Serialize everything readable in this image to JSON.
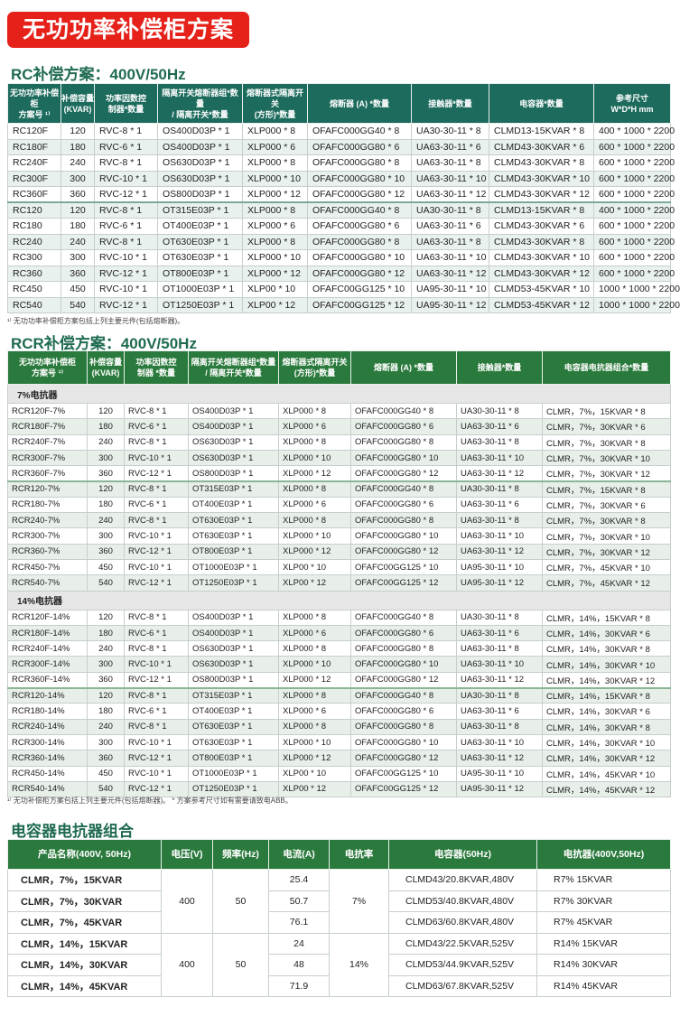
{
  "title": "无功功率补偿柜方案",
  "rc": {
    "heading": "RC补偿方案：400V/50Hz",
    "headers": [
      "无功功率补偿柜\n方案号 ¹⁾",
      "补偿容量\n(KVAR)",
      "功率因数控\n制器*数量",
      "隔离开关熔断器组*数量\n/ 隔离开关*数量",
      "熔断器式隔离开关\n(方形)*数量",
      "熔断器 (A) *数量",
      "接触器*数量",
      "电容器*数量",
      "参考尺寸\nW*D*H mm"
    ],
    "rows": [
      [
        "RC120F",
        "120",
        "RVC-8 * 1",
        "OS400D03P * 1",
        "XLP000 * 8",
        "OFAFC000GG40 * 8",
        "UA30-30-11 * 8",
        "CLMD13-15KVAR * 8",
        "400 * 1000 * 2200"
      ],
      [
        "RC180F",
        "180",
        "RVC-6 * 1",
        "OS400D03P * 1",
        "XLP000 * 6",
        "OFAFC000GG80 * 6",
        "UA63-30-11 * 6",
        "CLMD43-30KVAR * 6",
        "600 * 1000 * 2200"
      ],
      [
        "RC240F",
        "240",
        "RVC-8 * 1",
        "OS630D03P * 1",
        "XLP000 * 8",
        "OFAFC000GG80 * 8",
        "UA63-30-11 * 8",
        "CLMD43-30KVAR * 8",
        "600 * 1000 * 2200"
      ],
      [
        "RC300F",
        "300",
        "RVC-10 * 1",
        "OS630D03P * 1",
        "XLP000 * 10",
        "OFAFC000GG80 * 10",
        "UA63-30-11 * 10",
        "CLMD43-30KVAR * 10",
        "600 * 1000 * 2200"
      ],
      [
        "RC360F",
        "360",
        "RVC-12 * 1",
        "OS800D03P * 1",
        "XLP000 * 12",
        "OFAFC000GG80 * 12",
        "UA63-30-11 * 12",
        "CLMD43-30KVAR * 12",
        "600 * 1000 * 2200"
      ],
      [
        "RC120",
        "120",
        "RVC-8 * 1",
        "OT315E03P * 1",
        "XLP000 * 8",
        "OFAFC000GG40 * 8",
        "UA30-30-11 * 8",
        "CLMD13-15KVAR * 8",
        "400 * 1000 * 2200"
      ],
      [
        "RC180",
        "180",
        "RVC-6 * 1",
        "OT400E03P * 1",
        "XLP000 * 6",
        "OFAFC000GG80 * 6",
        "UA63-30-11 * 6",
        "CLMD43-30KVAR * 6",
        "600 * 1000 * 2200"
      ],
      [
        "RC240",
        "240",
        "RVC-8 * 1",
        "OT630E03P * 1",
        "XLP000 * 8",
        "OFAFC000GG80 * 8",
        "UA63-30-11 * 8",
        "CLMD43-30KVAR * 8",
        "600 * 1000 * 2200"
      ],
      [
        "RC300",
        "300",
        "RVC-10 * 1",
        "OT630E03P * 1",
        "XLP000 * 10",
        "OFAFC000GG80 * 10",
        "UA63-30-11 * 10",
        "CLMD43-30KVAR * 10",
        "600 * 1000 * 2200"
      ],
      [
        "RC360",
        "360",
        "RVC-12 * 1",
        "OT800E03P * 1",
        "XLP000 * 12",
        "OFAFC000GG80 * 12",
        "UA63-30-11 * 12",
        "CLMD43-30KVAR * 12",
        "600 * 1000 * 2200"
      ],
      [
        "RC450",
        "450",
        "RVC-10 * 1",
        "OT1000E03P * 1",
        "XLP00 * 10",
        "OFAFC00GG125 * 10",
        "UA95-30-11 * 10",
        "CLMD53-45KVAR * 10",
        "1000 * 1000 * 2200"
      ],
      [
        "RC540",
        "540",
        "RVC-12 * 1",
        "OT1250E03P * 1",
        "XLP00 * 12",
        "OFAFC00GG125 * 12",
        "UA95-30-11 * 12",
        "CLMD53-45KVAR * 12",
        "1000 * 1000 * 2200"
      ]
    ],
    "note": "¹⁾ 无功功率补偿柜方案包括上列主要元件(包括熔断器)。"
  },
  "rcr": {
    "heading": "RCR补偿方案：400V/50Hz",
    "headers": [
      "无功功率补偿柜\n方案号 ¹⁾",
      "补偿容量\n(KVAR)",
      "功率因数控\n制器 *数量",
      "隔离开关熔断器组*数量\n/ 隔离开关*数量",
      "熔断器式隔离开关\n(方形)*数量",
      "熔断器 (A) *数量",
      "接触器*数量",
      "电容器电抗器组合*数量"
    ],
    "sections": [
      {
        "label": "7%电抗器",
        "rows": [
          [
            "RCR120F-7%",
            "120",
            "RVC-8 * 1",
            "OS400D03P * 1",
            "XLP000 * 8",
            "OFAFC000GG40 * 8",
            "UA30-30-11 * 8",
            "CLMR，7%，15KVAR * 8"
          ],
          [
            "RCR180F-7%",
            "180",
            "RVC-6 * 1",
            "OS400D03P * 1",
            "XLP000 * 6",
            "OFAFC000GG80 * 6",
            "UA63-30-11 * 6",
            "CLMR，7%，30KVAR * 6"
          ],
          [
            "RCR240F-7%",
            "240",
            "RVC-8 * 1",
            "OS630D03P * 1",
            "XLP000 * 8",
            "OFAFC000GG80 * 8",
            "UA63-30-11 * 8",
            "CLMR，7%，30KVAR * 8"
          ],
          [
            "RCR300F-7%",
            "300",
            "RVC-10 * 1",
            "OS630D03P * 1",
            "XLP000 * 10",
            "OFAFC000GG80 * 10",
            "UA63-30-11 * 10",
            "CLMR，7%，30KVAR * 10"
          ],
          [
            "RCR360F-7%",
            "360",
            "RVC-12 * 1",
            "OS800D03P * 1",
            "XLP000 * 12",
            "OFAFC000GG80 * 12",
            "UA63-30-11 * 12",
            "CLMR，7%，30KVAR * 12"
          ],
          [
            "RCR120-7%",
            "120",
            "RVC-8 * 1",
            "OT315E03P * 1",
            "XLP000 * 8",
            "OFAFC000GG40 * 8",
            "UA30-30-11 * 8",
            "CLMR，7%，15KVAR * 8"
          ],
          [
            "RCR180-7%",
            "180",
            "RVC-6 * 1",
            "OT400E03P * 1",
            "XLP000 * 6",
            "OFAFC000GG80 * 6",
            "UA63-30-11 * 6",
            "CLMR，7%，30KVAR * 6"
          ],
          [
            "RCR240-7%",
            "240",
            "RVC-8 * 1",
            "OT630E03P * 1",
            "XLP000 * 8",
            "OFAFC000GG80 * 8",
            "UA63-30-11 * 8",
            "CLMR，7%，30KVAR * 8"
          ],
          [
            "RCR300-7%",
            "300",
            "RVC-10 * 1",
            "OT630E03P * 1",
            "XLP000 * 10",
            "OFAFC000GG80 * 10",
            "UA63-30-11 * 10",
            "CLMR，7%，30KVAR * 10"
          ],
          [
            "RCR360-7%",
            "360",
            "RVC-12 * 1",
            "OT800E03P * 1",
            "XLP000 * 12",
            "OFAFC000GG80 * 12",
            "UA63-30-11 * 12",
            "CLMR，7%，30KVAR * 12"
          ],
          [
            "RCR450-7%",
            "450",
            "RVC-10 * 1",
            "OT1000E03P * 1",
            "XLP00 * 10",
            "OFAFC00GG125 * 10",
            "UA95-30-11 * 10",
            "CLMR，7%，45KVAR * 10"
          ],
          [
            "RCR540-7%",
            "540",
            "RVC-12 * 1",
            "OT1250E03P * 1",
            "XLP00 * 12",
            "OFAFC00GG125 * 12",
            "UA95-30-11 * 12",
            "CLMR，7%，45KVAR * 12"
          ]
        ]
      },
      {
        "label": "14%电抗器",
        "rows": [
          [
            "RCR120F-14%",
            "120",
            "RVC-8 * 1",
            "OS400D03P * 1",
            "XLP000 * 8",
            "OFAFC000GG40 * 8",
            "UA30-30-11 * 8",
            "CLMR，14%，15KVAR * 8"
          ],
          [
            "RCR180F-14%",
            "180",
            "RVC-6 * 1",
            "OS400D03P * 1",
            "XLP000 * 6",
            "OFAFC000GG80 * 6",
            "UA63-30-11 * 6",
            "CLMR，14%，30KVAR * 6"
          ],
          [
            "RCR240F-14%",
            "240",
            "RVC-8 * 1",
            "OS630D03P * 1",
            "XLP000 * 8",
            "OFAFC000GG80 * 8",
            "UA63-30-11 * 8",
            "CLMR，14%，30KVAR * 8"
          ],
          [
            "RCR300F-14%",
            "300",
            "RVC-10 * 1",
            "OS630D03P * 1",
            "XLP000 * 10",
            "OFAFC000GG80 * 10",
            "UA63-30-11 * 10",
            "CLMR，14%，30KVAR * 10"
          ],
          [
            "RCR360F-14%",
            "360",
            "RVC-12 * 1",
            "OS800D03P * 1",
            "XLP000 * 12",
            "OFAFC000GG80 * 12",
            "UA63-30-11 * 12",
            "CLMR，14%，30KVAR * 12"
          ],
          [
            "RCR120-14%",
            "120",
            "RVC-8 * 1",
            "OT315E03P * 1",
            "XLP000 * 8",
            "OFAFC000GG40 * 8",
            "UA30-30-11 * 8",
            "CLMR，14%，15KVAR * 8"
          ],
          [
            "RCR180-14%",
            "180",
            "RVC-6 * 1",
            "OT400E03P * 1",
            "XLP000 * 6",
            "OFAFC000GG80 * 6",
            "UA63-30-11 * 6",
            "CLMR，14%，30KVAR * 6"
          ],
          [
            "RCR240-14%",
            "240",
            "RVC-8 * 1",
            "OT630E03P * 1",
            "XLP000 * 8",
            "OFAFC000GG80 * 8",
            "UA63-30-11 * 8",
            "CLMR，14%，30KVAR * 8"
          ],
          [
            "RCR300-14%",
            "300",
            "RVC-10 * 1",
            "OT630E03P * 1",
            "XLP000 * 10",
            "OFAFC000GG80 * 10",
            "UA63-30-11 * 10",
            "CLMR，14%，30KVAR * 10"
          ],
          [
            "RCR360-14%",
            "360",
            "RVC-12 * 1",
            "OT800E03P * 1",
            "XLP000 * 12",
            "OFAFC000GG80 * 12",
            "UA63-30-11 * 12",
            "CLMR，14%，30KVAR * 12"
          ],
          [
            "RCR450-14%",
            "450",
            "RVC-10 * 1",
            "OT1000E03P * 1",
            "XLP00 * 10",
            "OFAFC00GG125 * 10",
            "UA95-30-11 * 10",
            "CLMR，14%，45KVAR * 10"
          ],
          [
            "RCR540-14%",
            "540",
            "RVC-12 * 1",
            "OT1250E03P * 1",
            "XLP00 * 12",
            "OFAFC00GG125 * 12",
            "UA95-30-11 * 12",
            "CLMR，14%，45KVAR * 12"
          ]
        ]
      }
    ],
    "note": "¹⁾ 无功补偿柜方案包括上列主要元件(包括熔断器)。 * 方案参考尺寸如有需要请致电ABB。"
  },
  "combo": {
    "heading": "电容器电抗器组合",
    "headers": [
      "产品名称(400V, 50Hz)",
      "电压(V)",
      "频率(Hz)",
      "电流(A)",
      "电抗率",
      "电容器(50Hz)",
      "电抗器(400V,50Hz)"
    ],
    "groups": [
      {
        "voltage": "400",
        "frequency": "50",
        "reactance": "7%",
        "rows": [
          {
            "name": "CLMR，7%，15KVAR",
            "current": "25.4",
            "capacitor": "CLMD43/20.8KVAR,480V",
            "reactor": "R7% 15KVAR"
          },
          {
            "name": "CLMR，7%，30KVAR",
            "current": "50.7",
            "capacitor": "CLMD53/40.8KVAR,480V",
            "reactor": "R7% 30KVAR"
          },
          {
            "name": "CLMR，7%，45KVAR",
            "current": "76.1",
            "capacitor": "CLMD63/60.8KVAR,480V",
            "reactor": "R7% 45KVAR"
          }
        ]
      },
      {
        "voltage": "400",
        "frequency": "50",
        "reactance": "14%",
        "rows": [
          {
            "name": "CLMR，14%，15KVAR",
            "current": "24",
            "capacitor": "CLMD43/22.5KVAR,525V",
            "reactor": "R14% 15KVAR"
          },
          {
            "name": "CLMR，14%，30KVAR",
            "current": "48",
            "capacitor": "CLMD53/44.9KVAR,525V",
            "reactor": "R14% 30KVAR"
          },
          {
            "name": "CLMR，14%，45KVAR",
            "current": "71.9",
            "capacitor": "CLMD63/67.8KVAR,525V",
            "reactor": "R14% 45KVAR"
          }
        ]
      }
    ]
  }
}
